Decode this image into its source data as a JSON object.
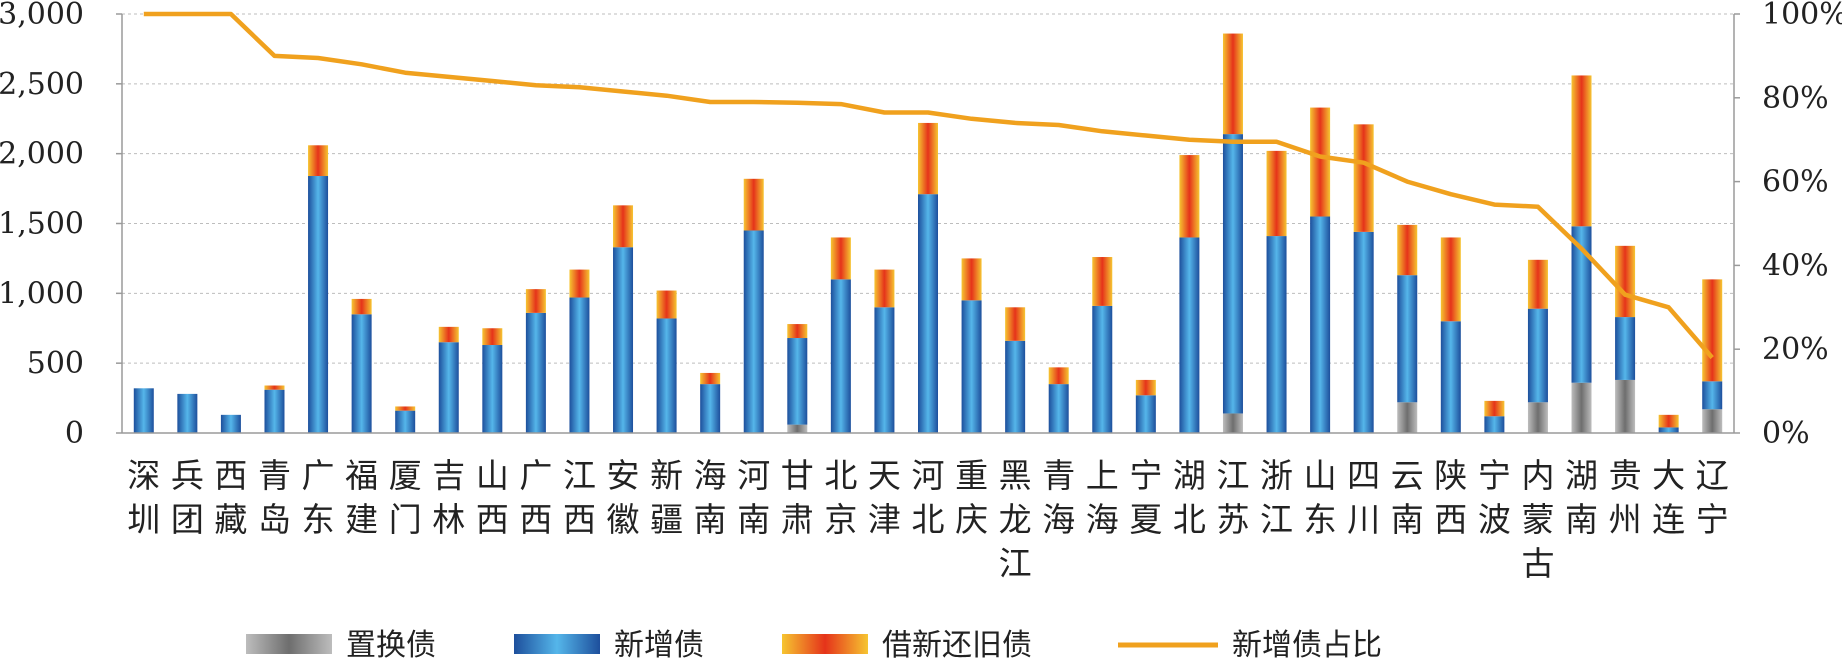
{
  "chart_data": {
    "type": "bar",
    "stacked": true,
    "categories": [
      "深圳",
      "兵团",
      "西藏",
      "青岛",
      "广东",
      "福建",
      "厦门",
      "吉林",
      "山西",
      "广西",
      "江西",
      "安徽",
      "新疆",
      "海南",
      "河南",
      "甘肃",
      "北京",
      "天津",
      "河北",
      "重庆",
      "黑龙江",
      "青海",
      "上海",
      "宁夏",
      "湖北",
      "江苏",
      "浙江",
      "山东",
      "四川",
      "云南",
      "陕西",
      "宁波",
      "内蒙古",
      "湖南",
      "贵州",
      "大连",
      "辽宁"
    ],
    "y_left": {
      "ylim": [
        0,
        3000
      ],
      "ticks": [
        "0",
        "500",
        "1,000",
        "1,500",
        "2,000",
        "2,500",
        "3,000"
      ],
      "tick_values": [
        0,
        500,
        1000,
        1500,
        2000,
        2500,
        3000
      ]
    },
    "y_right": {
      "ylim": [
        0,
        100
      ],
      "ticks": [
        "0%",
        "20%",
        "40%",
        "60%",
        "80%",
        "100%"
      ],
      "tick_values": [
        0,
        20,
        40,
        60,
        80,
        100
      ]
    },
    "series": [
      {
        "name": "置换债",
        "kind": "bar",
        "axis": "left",
        "values": [
          0,
          0,
          0,
          0,
          0,
          0,
          0,
          0,
          0,
          0,
          0,
          0,
          0,
          0,
          0,
          60,
          0,
          0,
          0,
          0,
          0,
          0,
          0,
          0,
          0,
          140,
          0,
          0,
          0,
          220,
          0,
          0,
          220,
          360,
          380,
          0,
          170
        ]
      },
      {
        "name": "新增债",
        "kind": "bar",
        "axis": "left",
        "values": [
          320,
          280,
          130,
          310,
          1840,
          850,
          160,
          650,
          630,
          860,
          970,
          1330,
          820,
          350,
          1450,
          620,
          1100,
          900,
          1710,
          950,
          660,
          350,
          910,
          270,
          1400,
          2000,
          1410,
          1550,
          1440,
          910,
          800,
          120,
          670,
          1120,
          450,
          40,
          200
        ]
      },
      {
        "name": "借新还旧债",
        "kind": "bar",
        "axis": "left",
        "values": [
          0,
          0,
          0,
          30,
          220,
          110,
          30,
          110,
          120,
          170,
          200,
          300,
          200,
          80,
          370,
          100,
          300,
          270,
          510,
          300,
          240,
          120,
          350,
          110,
          590,
          720,
          610,
          780,
          770,
          360,
          600,
          110,
          350,
          1080,
          510,
          90,
          730
        ]
      },
      {
        "name": "新增债占比",
        "kind": "line",
        "axis": "right",
        "values": [
          100,
          100,
          100,
          90,
          89.5,
          88,
          86,
          85,
          84,
          83,
          82.5,
          81.5,
          80.5,
          79,
          79,
          78.8,
          78.5,
          76.5,
          76.5,
          75,
          74,
          73.5,
          72,
          71,
          70,
          69.5,
          69.5,
          66,
          64.5,
          60,
          57,
          54.5,
          54,
          44,
          33,
          30,
          18
        ]
      }
    ],
    "colors": {
      "置换债": "#8c8c8c",
      "新增债": "#2a67b8",
      "借新还旧债": "#e8501c",
      "新增债占比": "#f0a11e"
    },
    "legend_position": "bottom",
    "grid": true
  }
}
